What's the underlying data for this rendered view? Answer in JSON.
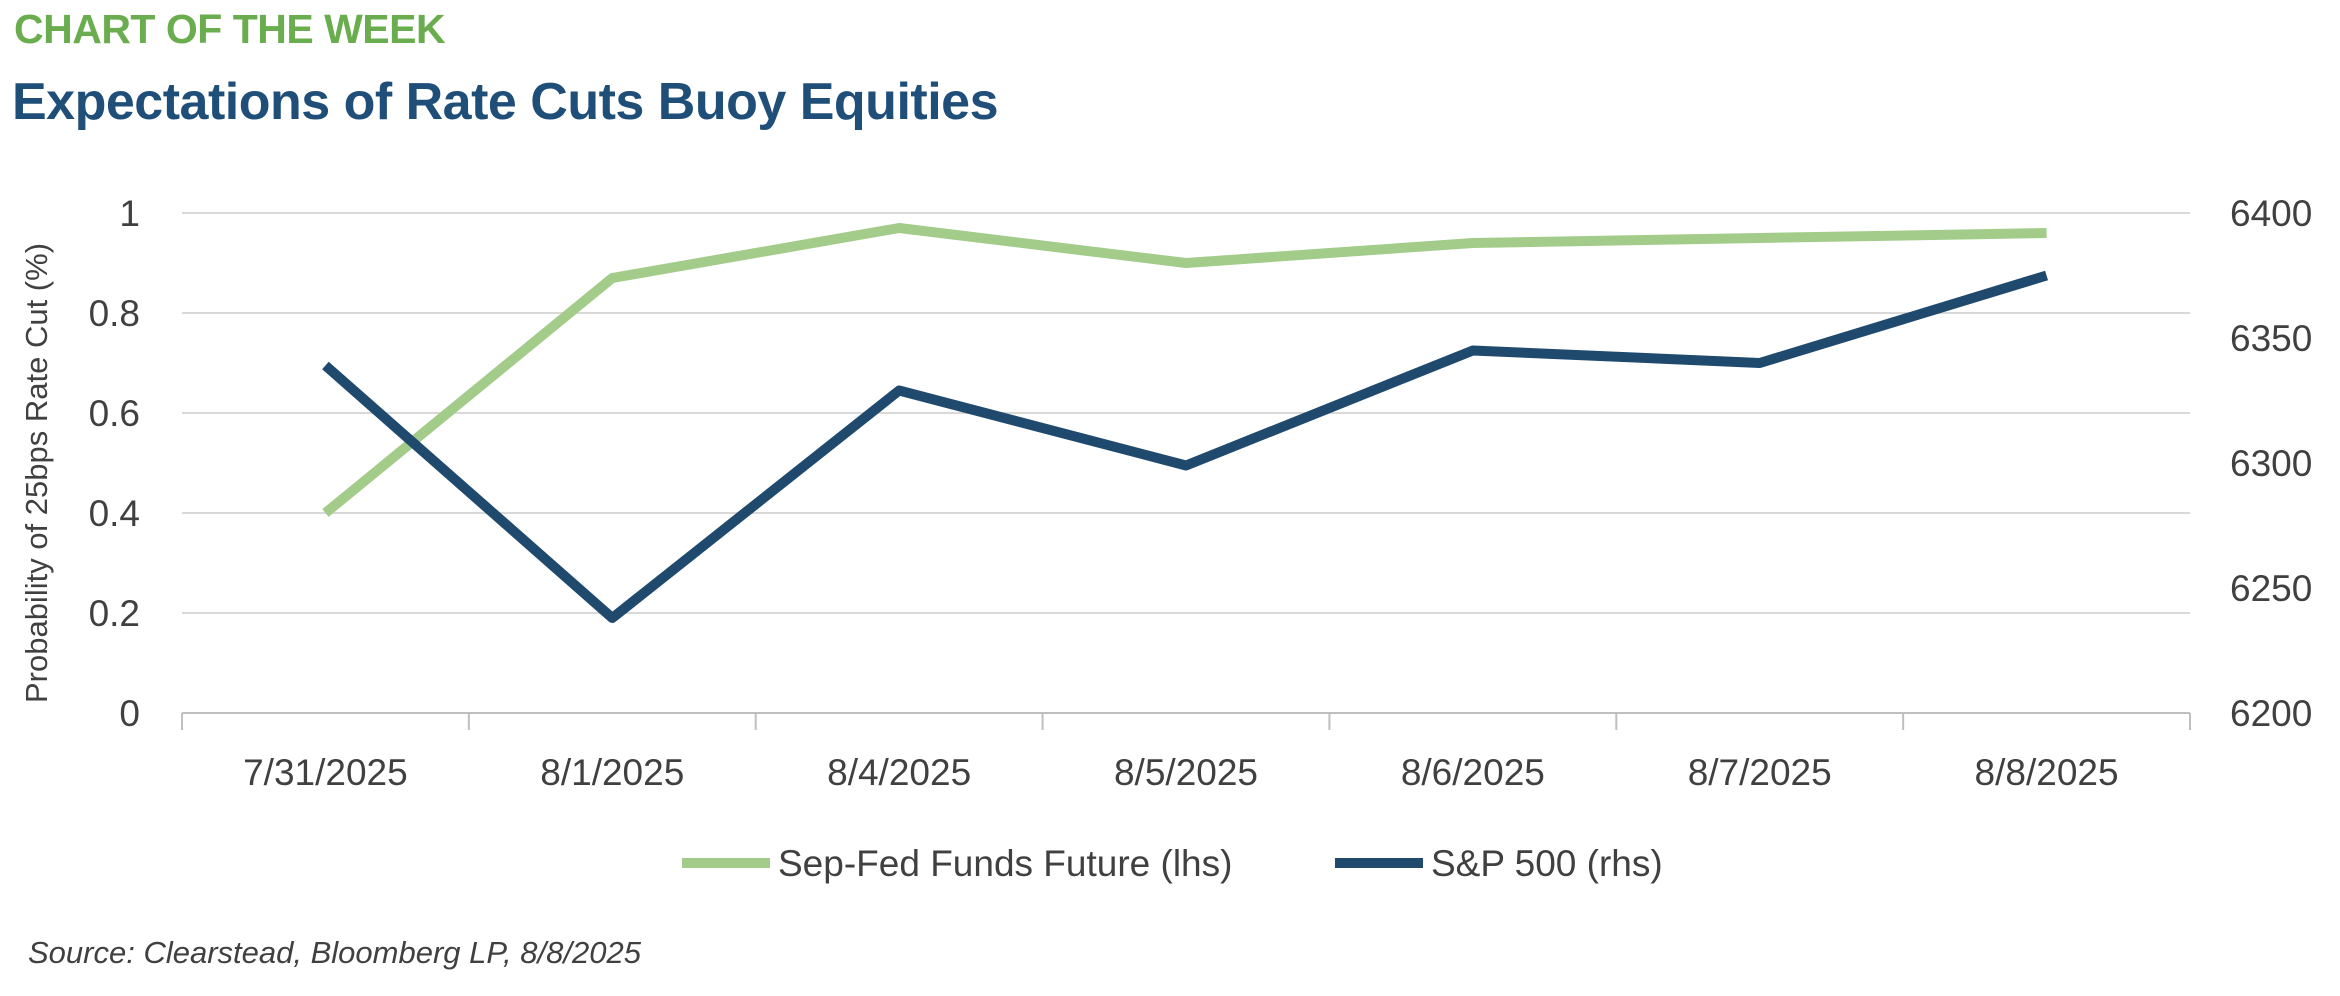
{
  "kicker": "CHART OF THE WEEK",
  "title": "Expectations of Rate Cuts Buoy Equities",
  "source": "Source: Clearstead, Bloomberg LP, 8/8/2025",
  "chart_data": {
    "type": "line",
    "categories": [
      "7/31/2025",
      "8/1/2025",
      "8/4/2025",
      "8/5/2025",
      "8/6/2025",
      "8/7/2025",
      "8/8/2025"
    ],
    "y_left": {
      "label": "Probability of 25bps Rate Cut (%)",
      "range": [
        0,
        1
      ],
      "ticks": [
        "0",
        "0.2",
        "0.4",
        "0.6",
        "0.8",
        "1"
      ]
    },
    "y_right": {
      "range": [
        6200,
        6400
      ],
      "ticks": [
        "6200",
        "6250",
        "6300",
        "6350",
        "6400"
      ]
    },
    "grid": true,
    "legend_position": "bottom",
    "series": [
      {
        "name": "Sep-Fed Funds Future (lhs)",
        "axis": "left",
        "color": "#a3cc8a",
        "values": [
          0.4,
          0.87,
          0.97,
          0.9,
          0.94,
          0.95,
          0.96
        ]
      },
      {
        "name": "S&P 500 (rhs)",
        "axis": "right",
        "color": "#1f4a6e",
        "values": [
          6339,
          6238,
          6329,
          6299,
          6345,
          6340,
          6375
        ]
      }
    ]
  }
}
